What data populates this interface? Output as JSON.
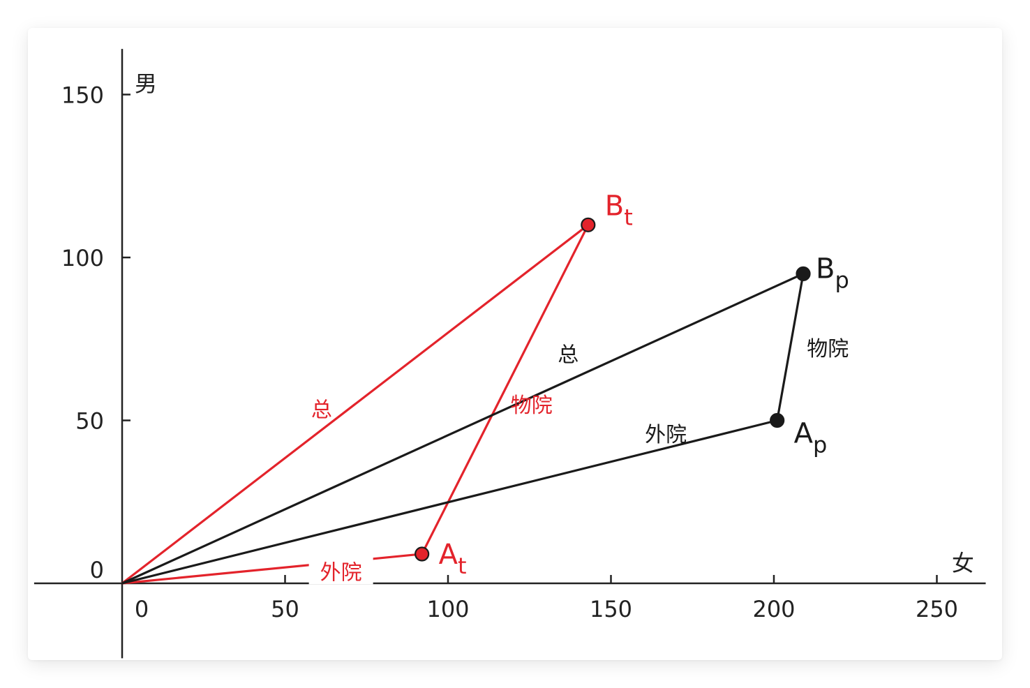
{
  "chart_data": {
    "type": "line",
    "xlabel": "女",
    "ylabel": "男",
    "xlim": [
      -27,
      265
    ],
    "ylim": [
      -23,
      164
    ],
    "x_ticks": [
      "0",
      "50",
      "100",
      "150",
      "200",
      "250"
    ],
    "y_ticks": [
      "0",
      "50",
      "100",
      "150"
    ],
    "colors": {
      "red": "#e3232b",
      "black": "#1a1a1a"
    },
    "points": [
      {
        "name": "At",
        "letter": "A",
        "sub": "t",
        "x": 92,
        "y": 9,
        "color": "#e3232b"
      },
      {
        "name": "Bt",
        "letter": "B",
        "sub": "t",
        "x": 143,
        "y": 110,
        "color": "#e3232b"
      },
      {
        "name": "Ap",
        "letter": "A",
        "sub": "p",
        "x": 201,
        "y": 50,
        "color": "#1a1a1a"
      },
      {
        "name": "Bp",
        "letter": "B",
        "sub": "p",
        "x": 209,
        "y": 95,
        "color": "#1a1a1a"
      }
    ],
    "segments": [
      {
        "from": [
          0,
          0
        ],
        "to": [
          92,
          9
        ],
        "label": "外院",
        "color": "#e3232b"
      },
      {
        "from": [
          0,
          0
        ],
        "to": [
          143,
          110
        ],
        "label": "总",
        "color": "#e3232b"
      },
      {
        "from": [
          92,
          9
        ],
        "to": [
          143,
          110
        ],
        "label": "物院",
        "color": "#e3232b"
      },
      {
        "from": [
          0,
          0
        ],
        "to": [
          201,
          50
        ],
        "label": "外院",
        "color": "#1a1a1a"
      },
      {
        "from": [
          0,
          0
        ],
        "to": [
          209,
          95
        ],
        "label": "总",
        "color": "#1a1a1a"
      },
      {
        "from": [
          201,
          50
        ],
        "to": [
          209,
          95
        ],
        "label": "物院",
        "color": "#1a1a1a"
      }
    ]
  }
}
